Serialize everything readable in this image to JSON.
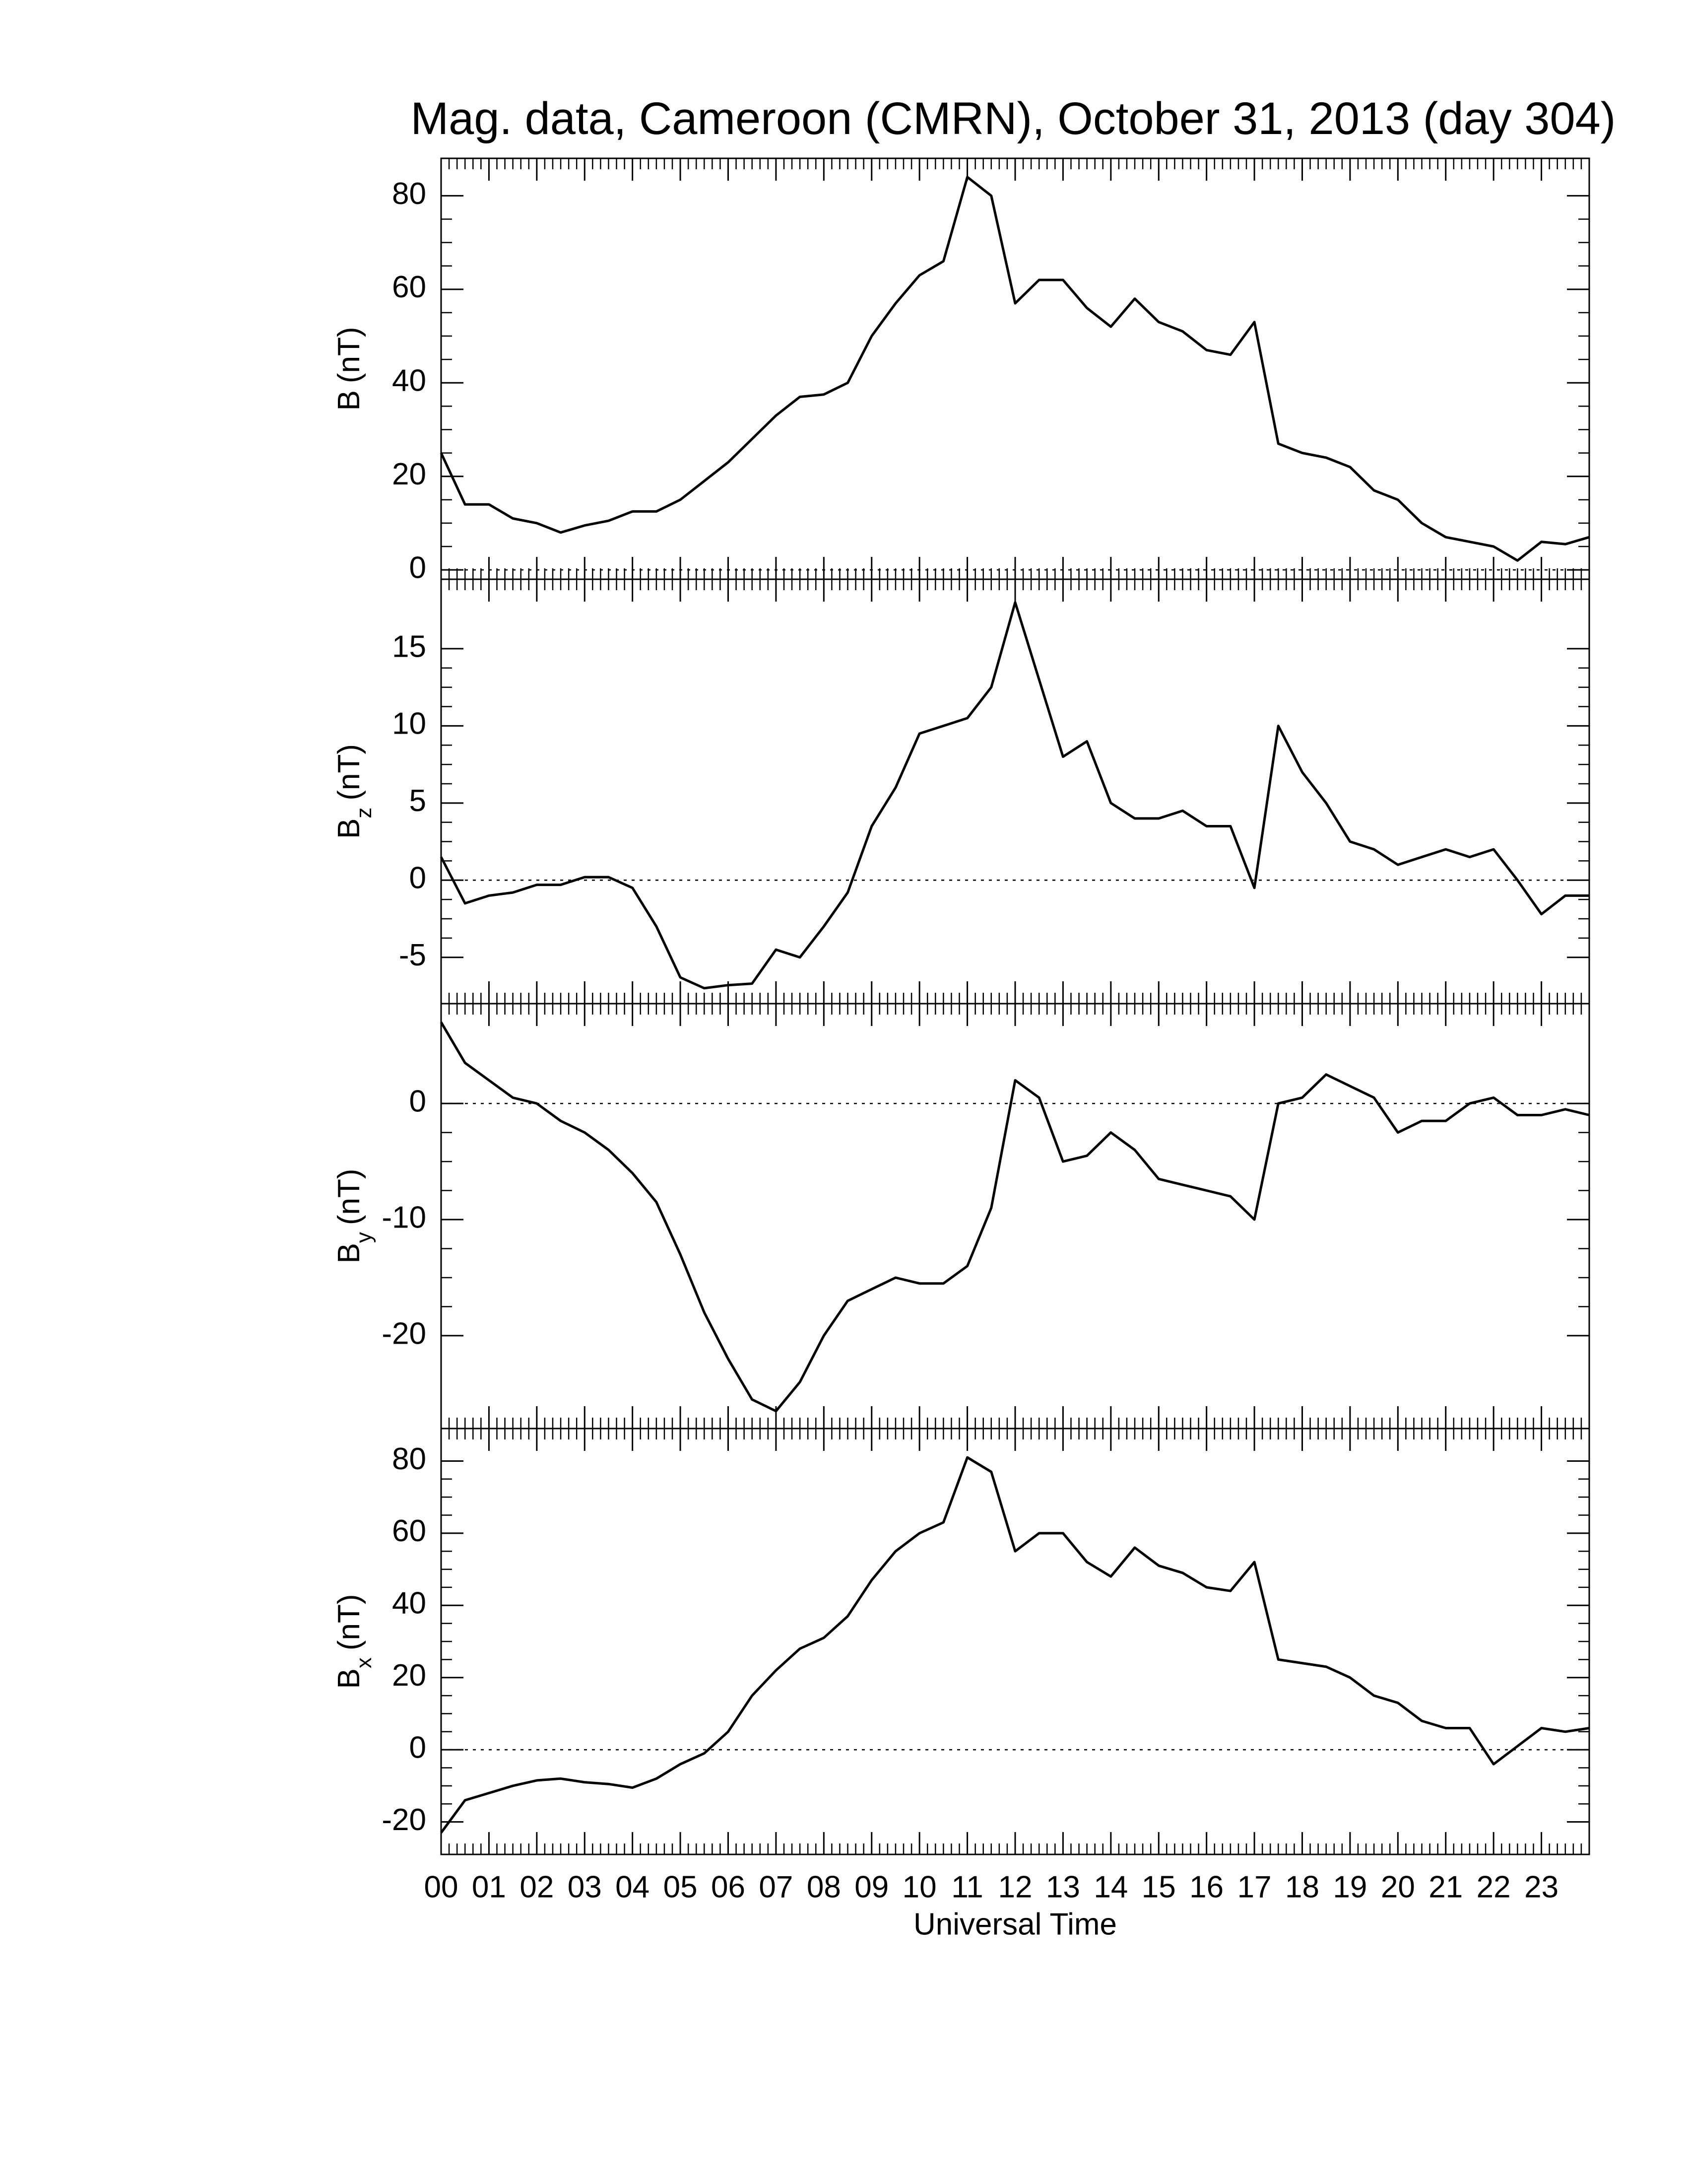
{
  "chart_data": [
    {
      "type": "line",
      "title": "Mag. data, Cameroon (CMRN), October 31, 2013 (day 304)",
      "ylabel": {
        "main": "B",
        "unit": "(nT)"
      },
      "xlim": [
        0,
        24
      ],
      "ylim": [
        -2,
        88
      ],
      "yticks": [
        0,
        20,
        40,
        60,
        80
      ],
      "zero_line": true,
      "color": "#000000",
      "x": [
        0,
        0.5,
        1,
        1.5,
        2,
        2.5,
        3,
        3.5,
        4,
        4.5,
        5,
        5.5,
        6,
        6.5,
        7,
        7.5,
        8,
        8.5,
        9,
        9.5,
        10,
        10.5,
        11,
        11.5,
        12,
        12.5,
        13,
        13.5,
        14,
        14.5,
        15,
        15.5,
        16,
        16.5,
        17,
        17.5,
        18,
        18.5,
        19,
        19.5,
        20,
        20.5,
        21,
        21.5,
        22,
        22.5,
        23,
        23.5,
        24
      ],
      "values": [
        25,
        14,
        14,
        11,
        10,
        8,
        9.5,
        10.5,
        12.5,
        12.5,
        15,
        19,
        23,
        28,
        33,
        37,
        37.5,
        40,
        50,
        57,
        63,
        66,
        84,
        80,
        57,
        62,
        62,
        56,
        52,
        58,
        53,
        51,
        47,
        46,
        53,
        27,
        25,
        24,
        22,
        17,
        15,
        10,
        7,
        6,
        5,
        2,
        6,
        5.5,
        7
      ]
    },
    {
      "type": "line",
      "ylabel": {
        "main": "B",
        "sub": "z",
        "unit": "(nT)"
      },
      "xlim": [
        0,
        24
      ],
      "ylim": [
        -8,
        19.5
      ],
      "yticks": [
        -5,
        0,
        5,
        10,
        15
      ],
      "zero_line": true,
      "color": "#000000",
      "x": [
        0,
        0.5,
        1,
        1.5,
        2,
        2.5,
        3,
        3.5,
        4,
        4.5,
        5,
        5.5,
        6,
        6.5,
        7,
        7.5,
        8,
        8.5,
        9,
        9.5,
        10,
        10.5,
        11,
        11.5,
        12,
        12.5,
        13,
        13.5,
        14,
        14.5,
        15,
        15.5,
        16,
        16.5,
        17,
        17.5,
        18,
        18.5,
        19,
        19.5,
        20,
        20.5,
        21,
        21.5,
        22,
        22.5,
        23,
        23.5,
        24
      ],
      "values": [
        1.5,
        -1.5,
        -1,
        -0.8,
        -0.3,
        -0.3,
        0.2,
        0.2,
        -0.5,
        -3,
        -6.3,
        -7,
        -6.8,
        -6.7,
        -4.5,
        -5,
        -3,
        -0.8,
        3.5,
        6,
        9.5,
        10,
        10.5,
        12.5,
        18,
        13,
        8,
        9,
        5,
        4,
        4,
        4.5,
        3.5,
        3.5,
        -0.5,
        10,
        7,
        5,
        2.5,
        2,
        1,
        1.5,
        2,
        1.5,
        2,
        0,
        -2.2,
        -1,
        -1
      ]
    },
    {
      "type": "line",
      "ylabel": {
        "main": "B",
        "sub": "y",
        "unit": "(nT)"
      },
      "xlim": [
        0,
        24
      ],
      "ylim": [
        -28,
        8.6
      ],
      "yticks": [
        -20,
        -10,
        0
      ],
      "zero_line": true,
      "color": "#000000",
      "x": [
        0,
        0.5,
        1,
        1.5,
        2,
        2.5,
        3,
        3.5,
        4,
        4.5,
        5,
        5.5,
        6,
        6.5,
        7,
        7.5,
        8,
        8.5,
        9,
        9.5,
        10,
        10.5,
        11,
        11.5,
        12,
        12.5,
        13,
        13.5,
        14,
        14.5,
        15,
        15.5,
        16,
        16.5,
        17,
        17.5,
        18,
        18.5,
        19,
        19.5,
        20,
        20.5,
        21,
        21.5,
        22,
        22.5,
        23,
        23.5,
        24
      ],
      "values": [
        7,
        3.5,
        2,
        0.5,
        0,
        -1.5,
        -2.5,
        -4,
        -6,
        -8.5,
        -13,
        -18,
        -22,
        -25.5,
        -26.5,
        -24,
        -20,
        -17,
        -16,
        -15,
        -15.5,
        -15.5,
        -14,
        -9,
        2,
        0.5,
        -5,
        -4.5,
        -2.5,
        -4,
        -6.5,
        -7,
        -7.5,
        -8,
        -10,
        0,
        0.5,
        2.5,
        1.5,
        0.5,
        -2.5,
        -1.5,
        -1.5,
        0,
        0.5,
        -1,
        -1,
        -0.5,
        -1
      ]
    },
    {
      "type": "line",
      "ylabel": {
        "main": "B",
        "sub": "x",
        "unit": "(nT)"
      },
      "xlabel": "Universal Time",
      "xlim": [
        0,
        24
      ],
      "ylim": [
        -29,
        89
      ],
      "yticks": [
        -20,
        0,
        20,
        40,
        60,
        80
      ],
      "zero_line": true,
      "color": "#000000",
      "xticks": [
        {
          "value": 0,
          "label": "00"
        },
        {
          "value": 1,
          "label": "01"
        },
        {
          "value": 2,
          "label": "02"
        },
        {
          "value": 3,
          "label": "03"
        },
        {
          "value": 4,
          "label": "04"
        },
        {
          "value": 5,
          "label": "05"
        },
        {
          "value": 6,
          "label": "06"
        },
        {
          "value": 7,
          "label": "07"
        },
        {
          "value": 8,
          "label": "08"
        },
        {
          "value": 9,
          "label": "09"
        },
        {
          "value": 10,
          "label": "10"
        },
        {
          "value": 11,
          "label": "11"
        },
        {
          "value": 12,
          "label": "12"
        },
        {
          "value": 13,
          "label": "13"
        },
        {
          "value": 14,
          "label": "14"
        },
        {
          "value": 15,
          "label": "15"
        },
        {
          "value": 16,
          "label": "16"
        },
        {
          "value": 17,
          "label": "17"
        },
        {
          "value": 18,
          "label": "18"
        },
        {
          "value": 19,
          "label": "19"
        },
        {
          "value": 20,
          "label": "20"
        },
        {
          "value": 21,
          "label": "21"
        },
        {
          "value": 22,
          "label": "22"
        },
        {
          "value": 23,
          "label": "23"
        }
      ],
      "x": [
        0,
        0.5,
        1,
        1.5,
        2,
        2.5,
        3,
        3.5,
        4,
        4.5,
        5,
        5.5,
        6,
        6.5,
        7,
        7.5,
        8,
        8.5,
        9,
        9.5,
        10,
        10.5,
        11,
        11.5,
        12,
        12.5,
        13,
        13.5,
        14,
        14.5,
        15,
        15.5,
        16,
        16.5,
        17,
        17.5,
        18,
        18.5,
        19,
        19.5,
        20,
        20.5,
        21,
        21.5,
        22,
        22.5,
        23,
        23.5,
        24
      ],
      "values": [
        -23,
        -14,
        -12,
        -10,
        -8.5,
        -8,
        -9,
        -9.5,
        -10.5,
        -8,
        -4,
        -1,
        5,
        15,
        22,
        28,
        31,
        37,
        47,
        55,
        60,
        63,
        81,
        77,
        55,
        60,
        60,
        52,
        48,
        56,
        51,
        49,
        45,
        44,
        52,
        25,
        24,
        23,
        20,
        15,
        13,
        8,
        6,
        6,
        -4,
        1,
        6,
        5,
        6
      ]
    }
  ]
}
